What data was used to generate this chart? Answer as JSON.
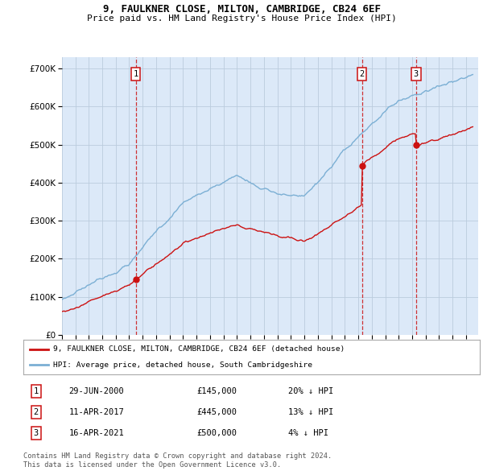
{
  "title1": "9, FAULKNER CLOSE, MILTON, CAMBRIDGE, CB24 6EF",
  "title2": "Price paid vs. HM Land Registry's House Price Index (HPI)",
  "legend_label_red": "9, FAULKNER CLOSE, MILTON, CAMBRIDGE, CB24 6EF (detached house)",
  "legend_label_blue": "HPI: Average price, detached house, South Cambridgeshire",
  "footer1": "Contains HM Land Registry data © Crown copyright and database right 2024.",
  "footer2": "This data is licensed under the Open Government Licence v3.0.",
  "transactions": [
    {
      "num": 1,
      "date": "29-JUN-2000",
      "price": "£145,000",
      "hpi": "20% ↓ HPI",
      "year": 2000.49
    },
    {
      "num": 2,
      "date": "11-APR-2017",
      "price": "£445,000",
      "hpi": "13% ↓ HPI",
      "year": 2017.28
    },
    {
      "num": 3,
      "date": "16-APR-2021",
      "price": "£500,000",
      "hpi": "4% ↓ HPI",
      "year": 2021.29
    }
  ],
  "transaction_prices": [
    145000,
    445000,
    500000
  ],
  "ylim": [
    0,
    730000
  ],
  "yticks": [
    0,
    100000,
    200000,
    300000,
    400000,
    500000,
    600000,
    700000
  ],
  "plot_bg": "#DCE9F8",
  "fig_bg": "#FFFFFF"
}
